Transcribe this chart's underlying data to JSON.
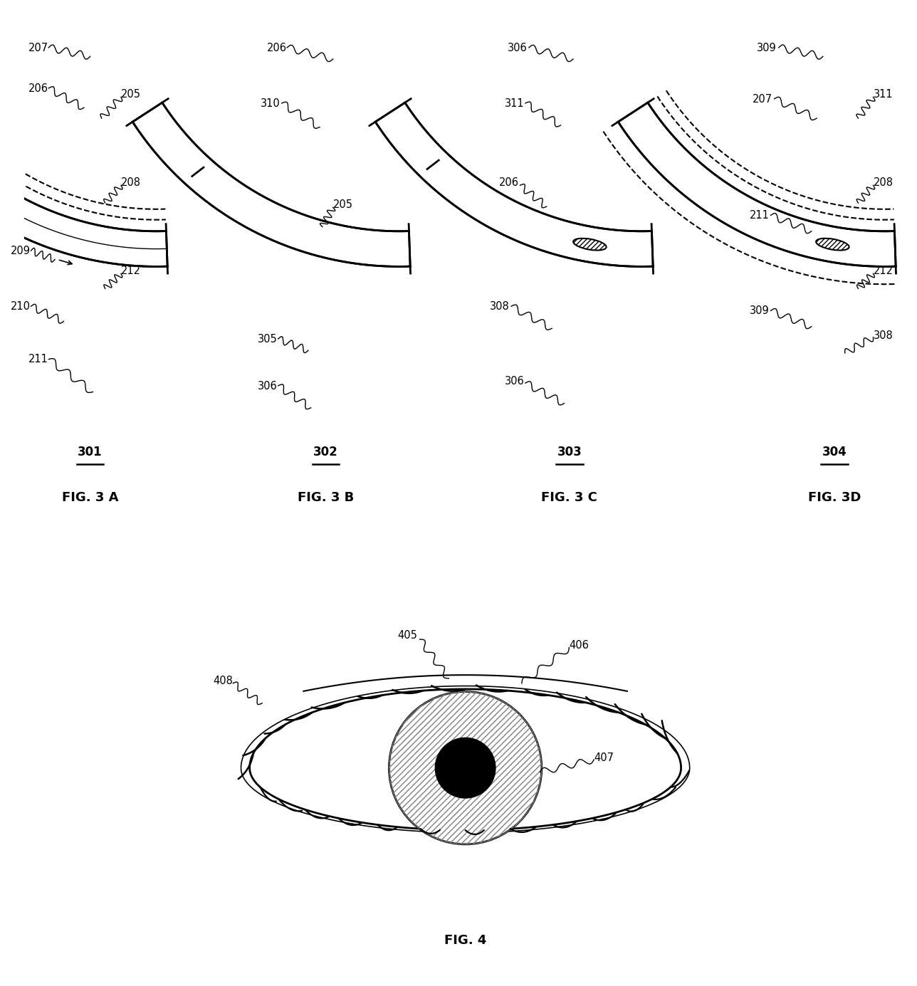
{
  "fig3a_label": "FIG. 3 A",
  "fig3b_label": "FIG. 3 B",
  "fig3c_label": "FIG. 3 C",
  "fig3d_label": "FIG. 3D",
  "fig4_label": "FIG. 4",
  "background": "#ffffff",
  "lw_main": 2.0,
  "lw_thick": 3.5,
  "lw_thin": 1.2,
  "fs_label": 10.5,
  "fs_fig": 13,
  "fs_ref": 12
}
